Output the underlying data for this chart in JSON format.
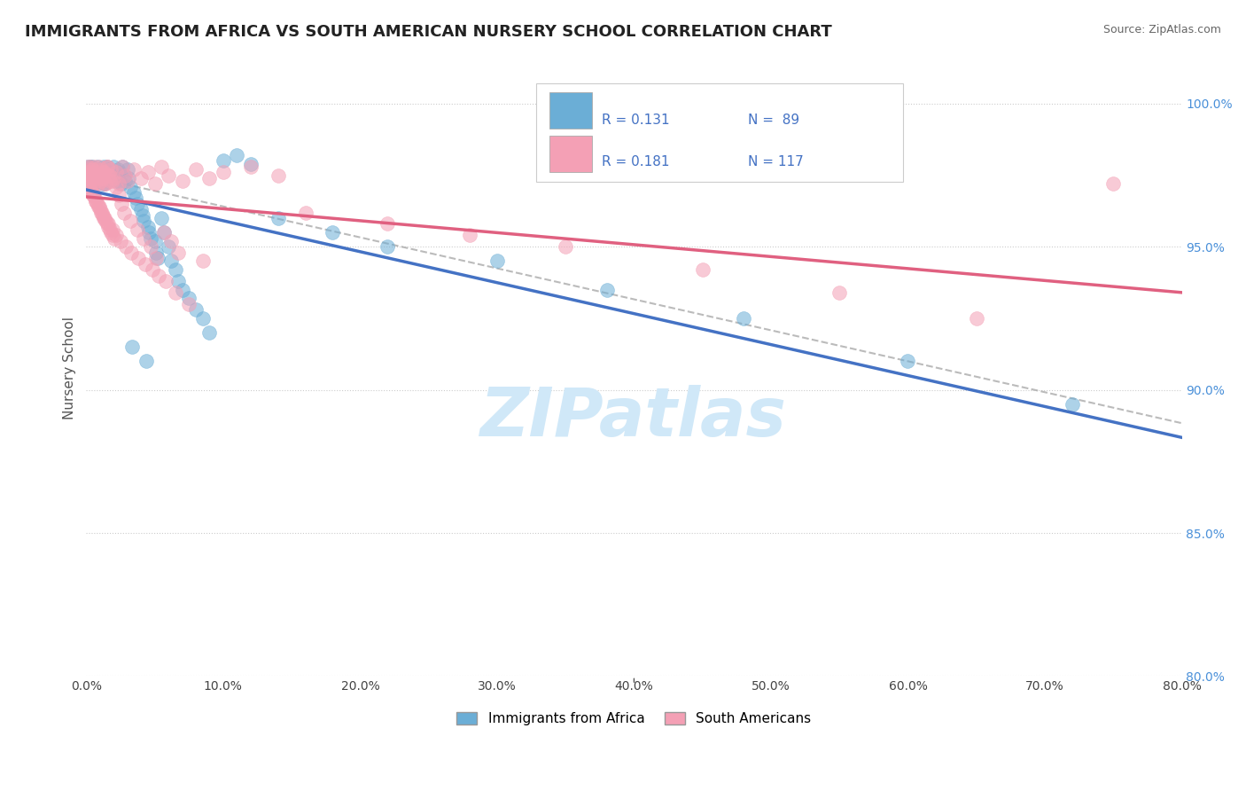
{
  "title": "IMMIGRANTS FROM AFRICA VS SOUTH AMERICAN NURSERY SCHOOL CORRELATION CHART",
  "source": "Source: ZipAtlas.com",
  "ylabel": "Nursery School",
  "xlim": [
    0.0,
    80.0
  ],
  "ylim": [
    80.0,
    101.5
  ],
  "xticks": [
    0.0,
    10.0,
    20.0,
    30.0,
    40.0,
    50.0,
    60.0,
    70.0,
    80.0
  ],
  "yticks": [
    80.0,
    85.0,
    90.0,
    95.0,
    100.0
  ],
  "blue_R": 0.131,
  "blue_N": 89,
  "pink_R": 0.181,
  "pink_N": 117,
  "blue_color": "#6baed6",
  "pink_color": "#f4a0b5",
  "blue_edge_color": "#5599cc",
  "pink_edge_color": "#e080a0",
  "blue_line_color": "#4472c4",
  "pink_line_color": "#e06080",
  "blue_label": "Immigrants from Africa",
  "pink_label": "South Americans",
  "blue_scatter_x": [
    0.05,
    0.08,
    0.1,
    0.12,
    0.15,
    0.18,
    0.2,
    0.22,
    0.25,
    0.28,
    0.3,
    0.35,
    0.4,
    0.45,
    0.5,
    0.55,
    0.6,
    0.65,
    0.7,
    0.75,
    0.8,
    0.85,
    0.9,
    0.95,
    1.0,
    1.05,
    1.1,
    1.2,
    1.3,
    1.4,
    1.5,
    1.6,
    1.7,
    1.8,
    1.95,
    2.0,
    2.1,
    2.2,
    2.3,
    2.4,
    2.55,
    2.6,
    2.75,
    2.8,
    3.0,
    3.1,
    3.2,
    3.5,
    3.6,
    3.7,
    4.0,
    4.1,
    4.2,
    4.5,
    4.6,
    4.7,
    5.0,
    5.1,
    5.2,
    5.5,
    5.7,
    6.0,
    6.2,
    6.5,
    6.7,
    7.0,
    7.5,
    8.0,
    8.5,
    9.0,
    10.0,
    11.0,
    12.0,
    14.0,
    18.0,
    22.0,
    30.0,
    38.0,
    48.0,
    60.0,
    72.0,
    1.15,
    1.25,
    1.35,
    1.55,
    1.75,
    2.35,
    3.35,
    4.35
  ],
  "blue_scatter_y": [
    97.5,
    97.2,
    97.8,
    97.5,
    97.3,
    97.6,
    97.4,
    97.7,
    97.6,
    97.8,
    97.5,
    97.3,
    97.8,
    97.6,
    97.4,
    97.2,
    97.5,
    97.7,
    97.3,
    97.6,
    97.4,
    97.8,
    97.5,
    97.3,
    97.7,
    97.4,
    97.6,
    97.2,
    97.8,
    97.5,
    97.3,
    97.7,
    97.4,
    97.6,
    97.4,
    97.8,
    97.5,
    97.3,
    97.7,
    97.6,
    97.2,
    97.8,
    97.5,
    97.3,
    97.7,
    97.4,
    97.1,
    96.9,
    96.7,
    96.5,
    96.3,
    96.1,
    95.9,
    95.7,
    95.5,
    95.3,
    95.2,
    94.8,
    94.6,
    96.0,
    95.5,
    95.0,
    94.5,
    94.2,
    93.8,
    93.5,
    93.2,
    92.8,
    92.5,
    92.0,
    98.0,
    98.2,
    97.9,
    96.0,
    95.5,
    95.0,
    94.5,
    93.5,
    92.5,
    91.0,
    89.5,
    97.4,
    97.6,
    97.2,
    97.8,
    97.5,
    97.3,
    91.5,
    91.0
  ],
  "pink_scatter_x": [
    0.05,
    0.08,
    0.1,
    0.12,
    0.15,
    0.18,
    0.2,
    0.22,
    0.25,
    0.28,
    0.3,
    0.35,
    0.4,
    0.45,
    0.5,
    0.55,
    0.6,
    0.65,
    0.7,
    0.75,
    0.8,
    0.85,
    0.9,
    0.95,
    1.0,
    1.05,
    1.1,
    1.2,
    1.3,
    1.4,
    1.5,
    1.6,
    1.7,
    1.8,
    2.0,
    2.2,
    2.4,
    2.6,
    2.8,
    3.0,
    3.5,
    4.0,
    4.5,
    5.0,
    5.5,
    6.0,
    7.0,
    8.0,
    9.0,
    10.0,
    12.0,
    14.0,
    16.0,
    22.0,
    28.0,
    35.0,
    45.0,
    55.0,
    65.0,
    75.0,
    0.3,
    0.5,
    0.7,
    0.9,
    1.1,
    1.3,
    1.6,
    1.9,
    2.2,
    2.5,
    2.9,
    3.3,
    3.8,
    4.3,
    4.8,
    5.3,
    5.8,
    6.5,
    7.5,
    1.15,
    1.25,
    1.35,
    1.55,
    1.75,
    1.95,
    2.15,
    2.35,
    2.55,
    2.75,
    3.2,
    3.7,
    4.2,
    4.7,
    5.1,
    5.7,
    6.2,
    6.7,
    8.5,
    0.32,
    0.42,
    0.52,
    0.62,
    0.72,
    0.82,
    0.92,
    1.02,
    1.12,
    1.22,
    1.32,
    1.42,
    1.52,
    1.62,
    1.72,
    1.82,
    1.92,
    2.02
  ],
  "pink_scatter_y": [
    97.6,
    97.4,
    97.8,
    97.5,
    97.3,
    97.7,
    97.4,
    97.6,
    97.2,
    97.8,
    97.5,
    97.3,
    97.7,
    97.4,
    97.6,
    97.2,
    97.8,
    97.5,
    97.3,
    97.7,
    97.4,
    97.6,
    97.2,
    97.8,
    97.5,
    97.3,
    97.7,
    97.4,
    97.6,
    97.2,
    97.8,
    97.5,
    97.3,
    97.7,
    97.4,
    97.6,
    97.2,
    97.8,
    97.5,
    97.3,
    97.7,
    97.4,
    97.6,
    97.2,
    97.8,
    97.5,
    97.3,
    97.7,
    97.4,
    97.6,
    97.8,
    97.5,
    96.2,
    95.8,
    95.4,
    95.0,
    94.2,
    93.4,
    92.5,
    97.2,
    97.0,
    96.8,
    96.6,
    96.4,
    96.2,
    96.0,
    95.8,
    95.6,
    95.4,
    95.2,
    95.0,
    94.8,
    94.6,
    94.4,
    94.2,
    94.0,
    93.8,
    93.4,
    93.0,
    97.4,
    97.6,
    97.2,
    97.8,
    97.5,
    97.3,
    97.1,
    96.8,
    96.5,
    96.2,
    95.9,
    95.6,
    95.3,
    95.0,
    94.6,
    95.5,
    95.2,
    94.8,
    94.5,
    97.0,
    96.9,
    96.8,
    96.7,
    96.6,
    96.5,
    96.4,
    96.3,
    96.2,
    96.1,
    96.0,
    95.9,
    95.8,
    95.7,
    95.6,
    95.5,
    95.4,
    95.3
  ],
  "background_color": "#ffffff",
  "grid_color": "#cccccc",
  "title_color": "#222222",
  "axis_label_color": "#555555",
  "tick_label_color_y": "#4a90d9",
  "tick_label_color_x": "#444444",
  "source_color": "#666666",
  "watermark_color": "#d0e8f8",
  "legend_color": "#4472c4"
}
